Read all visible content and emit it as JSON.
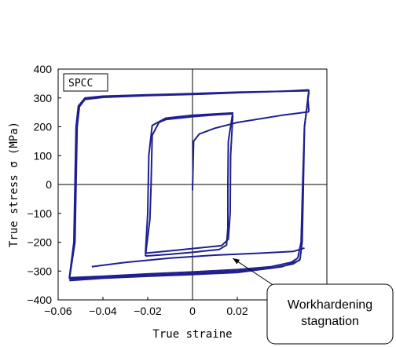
{
  "chart_data": {
    "type": "line",
    "xlabel": "True straine",
    "ylabel": "True stress σ (MPa)",
    "xlim": [
      -0.06,
      0.06
    ],
    "ylim": [
      -400,
      400
    ],
    "xticks": [
      -0.06,
      -0.04,
      -0.02,
      0,
      0.02
    ],
    "xtick_labels": [
      "−0.06",
      "−0.04",
      "−0.02",
      "0",
      "0.02"
    ],
    "yticks": [
      -400,
      -300,
      -200,
      -100,
      0,
      100,
      200,
      300,
      400
    ],
    "ytick_labels": [
      "−400",
      "−300",
      "−200",
      "−100",
      "0",
      "100",
      "200",
      "300",
      "400"
    ],
    "legend_badge": "SPCC",
    "annotation": {
      "text_lines": [
        "Workhardening",
        "stagnation"
      ],
      "points_to": [
        0.018,
        -245
      ]
    },
    "grid": false,
    "zero_lines": true,
    "line_color": "#1f1f8f",
    "series": [
      {
        "values": [
          [
            0,
            -20
          ],
          [
            0.0005,
            150
          ],
          [
            0.003,
            175
          ],
          [
            0.01,
            195
          ],
          [
            0.02,
            215
          ],
          [
            0.04,
            240
          ],
          [
            0.052,
            252
          ]
        ]
      },
      {
        "values": [
          [
            0.018,
            250
          ],
          [
            0.016,
            150
          ],
          [
            0.0158,
            0
          ],
          [
            0.0158,
            -150
          ],
          [
            0.0152,
            -210
          ],
          [
            0.012,
            -225
          ],
          [
            0.0,
            -235
          ],
          [
            -0.01,
            -242
          ],
          [
            -0.021,
            -248
          ]
        ]
      },
      {
        "values": [
          [
            -0.021,
            -248
          ],
          [
            -0.019,
            -120
          ],
          [
            -0.0185,
            0
          ],
          [
            -0.018,
            170
          ],
          [
            -0.015,
            215
          ],
          [
            -0.012,
            225
          ],
          [
            0.0,
            235
          ],
          [
            0.01,
            241
          ],
          [
            0.018,
            245
          ]
        ]
      },
      {
        "values": [
          [
            0.018,
            240
          ],
          [
            0.017,
            100
          ],
          [
            0.0168,
            -100
          ],
          [
            0.016,
            -190
          ],
          [
            0.013,
            -212
          ],
          [
            0.0,
            -222
          ],
          [
            -0.01,
            -230
          ],
          [
            -0.021,
            -238
          ]
        ]
      },
      {
        "values": [
          [
            -0.021,
            -238
          ],
          [
            -0.02,
            -100
          ],
          [
            -0.0195,
            100
          ],
          [
            -0.018,
            205
          ],
          [
            -0.012,
            230
          ],
          [
            0.0,
            240
          ],
          [
            0.018,
            248
          ]
        ]
      },
      {
        "values": [
          [
            0.052,
            252
          ],
          [
            0.0515,
            300
          ],
          [
            0.052,
            322
          ]
        ]
      },
      {
        "values": [
          [
            0.052,
            322
          ],
          [
            0.05,
            200
          ],
          [
            0.0495,
            0
          ],
          [
            0.049,
            -200
          ],
          [
            0.048,
            -260
          ],
          [
            0.045,
            -275
          ],
          [
            0.035,
            -290
          ],
          [
            0.02,
            -300
          ],
          [
            0.0,
            -308
          ],
          [
            -0.02,
            -315
          ],
          [
            -0.04,
            -322
          ],
          [
            -0.055,
            -328
          ]
        ]
      },
      {
        "values": [
          [
            -0.055,
            -328
          ],
          [
            -0.0525,
            -200
          ],
          [
            -0.052,
            0
          ],
          [
            -0.0515,
            200
          ],
          [
            -0.0505,
            270
          ],
          [
            -0.048,
            295
          ],
          [
            -0.04,
            302
          ],
          [
            -0.02,
            308
          ],
          [
            0.0,
            312
          ],
          [
            0.02,
            318
          ],
          [
            0.04,
            323
          ],
          [
            0.052,
            328
          ]
        ]
      },
      {
        "values": [
          [
            0.052,
            328
          ],
          [
            0.05,
            200
          ],
          [
            0.0492,
            0
          ],
          [
            0.0485,
            -200
          ],
          [
            0.047,
            -255
          ],
          [
            0.044,
            -270
          ],
          [
            0.035,
            -285
          ],
          [
            0.02,
            -295
          ],
          [
            0.0,
            -303
          ],
          [
            -0.02,
            -310
          ],
          [
            -0.04,
            -318
          ],
          [
            -0.055,
            -323
          ]
        ]
      },
      {
        "values": [
          [
            -0.055,
            -323
          ],
          [
            -0.053,
            -200
          ],
          [
            -0.0525,
            0
          ],
          [
            -0.052,
            200
          ],
          [
            -0.051,
            272
          ],
          [
            -0.048,
            300
          ],
          [
            -0.04,
            306
          ],
          [
            -0.02,
            311
          ],
          [
            0.0,
            315
          ],
          [
            0.02,
            320
          ],
          [
            0.052,
            325
          ]
        ]
      },
      {
        "values": [
          [
            -0.055,
            -333
          ],
          [
            -0.04,
            -325
          ],
          [
            -0.02,
            -318
          ],
          [
            0.0,
            -312
          ],
          [
            0.02,
            -305
          ],
          [
            0.04,
            -285
          ],
          [
            0.048,
            -262
          ]
        ]
      },
      {
        "values": [
          [
            -0.045,
            -285
          ],
          [
            -0.03,
            -270
          ],
          [
            -0.01,
            -255
          ],
          [
            0.01,
            -245
          ],
          [
            0.03,
            -238
          ],
          [
            0.045,
            -232
          ],
          [
            0.05,
            -220
          ]
        ]
      }
    ]
  }
}
